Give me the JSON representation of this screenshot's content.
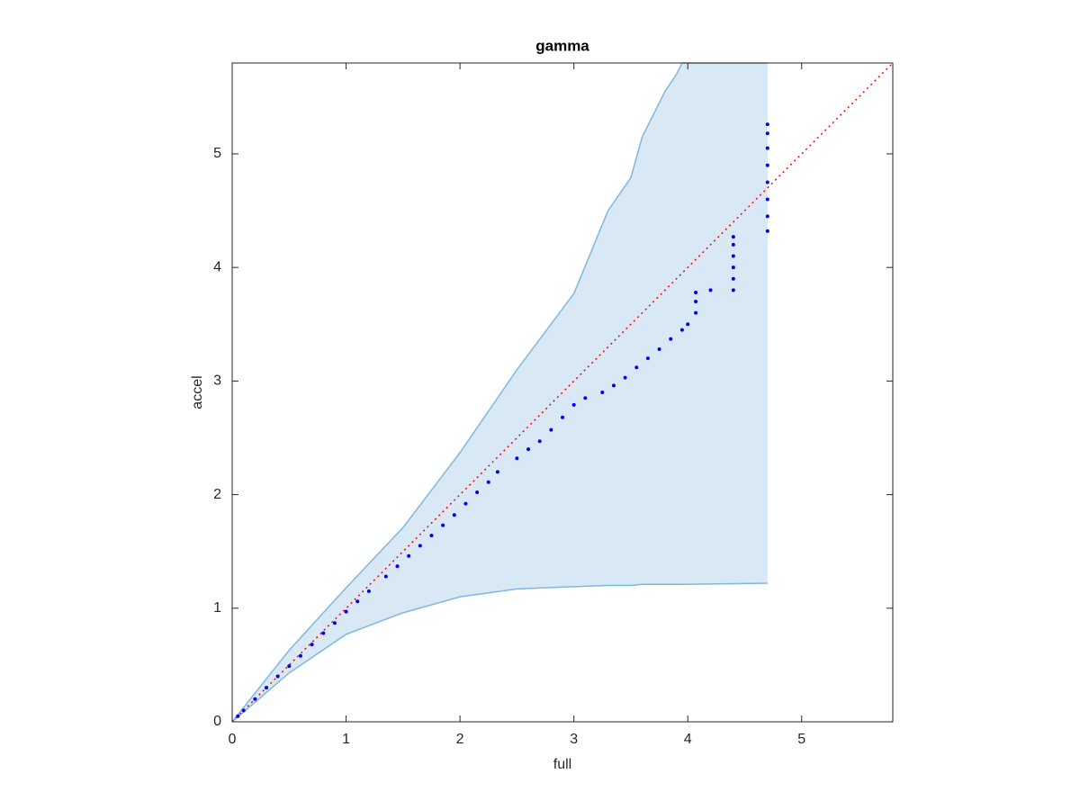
{
  "chart_data": {
    "type": "qqband",
    "title": "gamma",
    "xlabel": "full",
    "ylabel": "accel",
    "xlim": [
      0,
      5.8
    ],
    "ylim": [
      0,
      5.8
    ],
    "xticks": [
      0,
      1,
      2,
      3,
      4,
      5
    ],
    "yticks": [
      0,
      1,
      2,
      3,
      4,
      5
    ],
    "band": {
      "color": "#d9e8f5",
      "edge_color": "#7fb8de",
      "x": [
        0,
        0.5,
        1,
        1.5,
        2,
        2.5,
        3,
        3.3,
        3.5,
        3.6,
        3.7,
        3.8,
        3.9,
        3.95,
        4.7
      ],
      "upper": [
        0,
        0.63,
        1.18,
        1.71,
        2.37,
        3.1,
        3.77,
        4.5,
        4.79,
        5.15,
        5.35,
        5.55,
        5.7,
        5.8,
        5.8
      ],
      "lower": [
        0,
        0.43,
        0.77,
        0.96,
        1.1,
        1.17,
        1.19,
        1.2,
        1.2,
        1.21,
        1.21,
        1.21,
        1.21,
        1.21,
        1.22
      ]
    },
    "reference": {
      "color": "#ff0000",
      "x": [
        0,
        5.8
      ],
      "y": [
        0,
        5.8
      ]
    },
    "points": {
      "color": "#0000ff",
      "x": [
        0.05,
        0.1,
        0.2,
        0.3,
        0.4,
        0.5,
        0.6,
        0.7,
        0.8,
        0.9,
        1.0,
        1.1,
        1.2,
        1.35,
        1.45,
        1.55,
        1.65,
        1.75,
        1.85,
        1.95,
        2.05,
        2.15,
        2.25,
        2.33,
        2.5,
        2.6,
        2.7,
        2.8,
        2.9,
        3.0,
        3.1,
        3.25,
        3.35,
        3.45,
        3.55,
        3.65,
        3.75,
        3.85,
        3.95,
        4.0,
        4.07,
        4.07,
        4.07,
        4.2,
        4.4,
        4.4,
        4.4,
        4.4,
        4.4,
        4.4,
        4.7,
        4.7,
        4.7,
        4.7,
        4.7,
        4.7,
        4.7,
        4.7
      ],
      "y": [
        0.05,
        0.1,
        0.2,
        0.3,
        0.4,
        0.49,
        0.58,
        0.68,
        0.78,
        0.87,
        0.97,
        1.06,
        1.15,
        1.28,
        1.37,
        1.46,
        1.55,
        1.64,
        1.73,
        1.82,
        1.92,
        2.02,
        2.11,
        2.2,
        2.32,
        2.4,
        2.47,
        2.57,
        2.68,
        2.79,
        2.85,
        2.9,
        2.96,
        3.03,
        3.12,
        3.2,
        3.28,
        3.37,
        3.45,
        3.5,
        3.6,
        3.7,
        3.78,
        3.8,
        3.8,
        3.9,
        4.0,
        4.1,
        4.2,
        4.27,
        4.32,
        4.45,
        4.6,
        4.75,
        4.9,
        5.05,
        5.18,
        5.26
      ]
    }
  }
}
